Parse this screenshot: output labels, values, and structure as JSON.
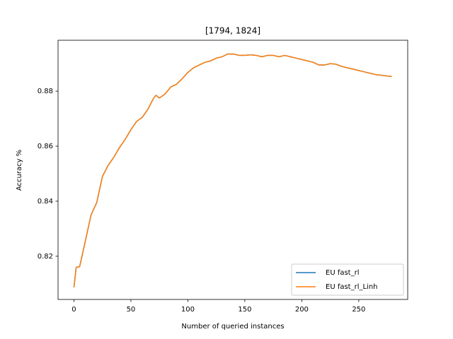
{
  "chart_data": {
    "type": "line",
    "title": "[1794, 1824]",
    "xlabel": "Number of queried instances",
    "ylabel": "Accuracy %",
    "x": [
      0,
      2,
      5,
      10,
      15,
      20,
      25,
      30,
      35,
      40,
      45,
      50,
      55,
      60,
      65,
      70,
      72,
      75,
      80,
      85,
      90,
      95,
      100,
      105,
      110,
      115,
      120,
      125,
      130,
      135,
      140,
      145,
      150,
      155,
      160,
      165,
      170,
      175,
      180,
      185,
      190,
      195,
      200,
      205,
      210,
      215,
      220,
      225,
      230,
      235,
      240,
      245,
      250,
      255,
      260,
      265,
      270,
      275,
      279
    ],
    "series": [
      {
        "name": "EU fast_rl",
        "color": "#1f77b4",
        "values": [
          0.8087,
          0.816,
          0.8162,
          0.8255,
          0.835,
          0.8395,
          0.849,
          0.853,
          0.856,
          0.8595,
          0.8625,
          0.866,
          0.869,
          0.8705,
          0.8735,
          0.8775,
          0.8785,
          0.8775,
          0.879,
          0.8815,
          0.8825,
          0.8845,
          0.8868,
          0.8885,
          0.8895,
          0.8905,
          0.891,
          0.892,
          0.8925,
          0.8935,
          0.8935,
          0.893,
          0.893,
          0.8932,
          0.893,
          0.8925,
          0.893,
          0.893,
          0.8925,
          0.893,
          0.8925,
          0.892,
          0.8915,
          0.891,
          0.8905,
          0.8895,
          0.8895,
          0.89,
          0.8898,
          0.889,
          0.8885,
          0.888,
          0.8875,
          0.887,
          0.8865,
          0.886,
          0.8858,
          0.8855,
          0.8853
        ]
      },
      {
        "name": "EU fast_rl_Linh",
        "color": "#ff7f0e",
        "values": [
          0.8087,
          0.816,
          0.8162,
          0.8255,
          0.835,
          0.8395,
          0.849,
          0.853,
          0.856,
          0.8595,
          0.8625,
          0.866,
          0.869,
          0.8705,
          0.8735,
          0.8775,
          0.8785,
          0.8775,
          0.879,
          0.8815,
          0.8825,
          0.8845,
          0.8868,
          0.8885,
          0.8895,
          0.8905,
          0.891,
          0.892,
          0.8925,
          0.8935,
          0.8935,
          0.893,
          0.893,
          0.8932,
          0.893,
          0.8925,
          0.893,
          0.893,
          0.8925,
          0.893,
          0.8925,
          0.892,
          0.8915,
          0.891,
          0.8905,
          0.8895,
          0.8895,
          0.89,
          0.8898,
          0.889,
          0.8885,
          0.888,
          0.8875,
          0.887,
          0.8865,
          0.886,
          0.8858,
          0.8855,
          0.8853
        ]
      }
    ],
    "xlim": [
      -13.95,
      292.95
    ],
    "xticks": [
      0,
      50,
      100,
      150,
      200,
      250
    ],
    "ylim": [
      0.8043,
      0.8985
    ],
    "yticks": [
      0.82,
      0.84,
      0.86,
      0.88
    ],
    "grid": false,
    "legend": "lower right"
  }
}
